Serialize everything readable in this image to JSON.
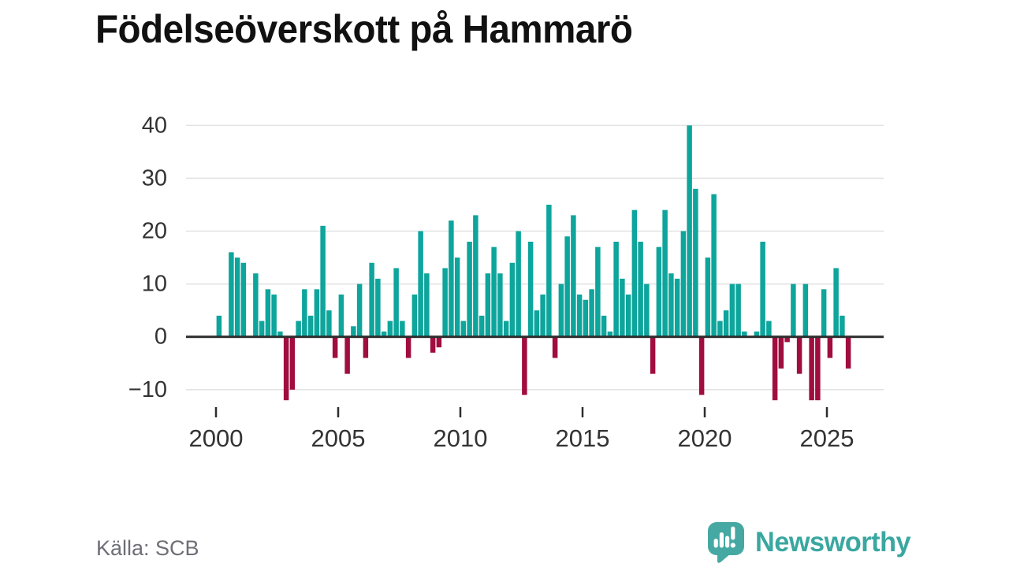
{
  "page": {
    "title": "Födelseöverskott på Hammarö",
    "source": "Källa: SCB",
    "brand": {
      "name": "Newsworthy",
      "text_color": "#3aa7a0",
      "icon_color": "#45a8a2"
    }
  },
  "chart_data": {
    "type": "bar",
    "title": "Födelseöverskott på Hammarö",
    "source": "Källa: SCB",
    "frequency": "quarterly",
    "start": "2000-Q1",
    "end": "2025-Q4",
    "grid": true,
    "legend": "none",
    "ylim": [
      -13.5,
      42
    ],
    "positive_color": "#0da59c",
    "negative_color": "#a00d3f",
    "y_axis": {
      "tick_values": [
        40,
        30,
        20,
        10,
        0,
        -10
      ],
      "tick_labels": [
        "40",
        "30",
        "20",
        "10",
        "0",
        "−10"
      ]
    },
    "x_axis": {
      "tick_years": [
        2000,
        2005,
        2010,
        2015,
        2020,
        2025
      ],
      "tick_labels": [
        "2000",
        "2005",
        "2010",
        "2015",
        "2020",
        "2025"
      ]
    },
    "series": [
      {
        "name": "Födelseöverskott",
        "quarter_order": [
          "Q1",
          "Q2",
          "Q3",
          "Q4"
        ],
        "values_by_year": {
          "2000": [
            4,
            0,
            16,
            15
          ],
          "2001": [
            14,
            0,
            12,
            3
          ],
          "2002": [
            9,
            8,
            1,
            -12
          ],
          "2003": [
            -10,
            3,
            9,
            4
          ],
          "2004": [
            9,
            21,
            5,
            -4
          ],
          "2005": [
            8,
            -7,
            2,
            10
          ],
          "2006": [
            -4,
            14,
            11,
            1
          ],
          "2007": [
            3,
            13,
            3,
            -4
          ],
          "2008": [
            8,
            20,
            12,
            -3
          ],
          "2009": [
            -2,
            13,
            22,
            15
          ],
          "2010": [
            3,
            18,
            23,
            4
          ],
          "2011": [
            12,
            17,
            12,
            3
          ],
          "2012": [
            14,
            20,
            -11,
            18
          ],
          "2013": [
            5,
            8,
            25,
            -4
          ],
          "2014": [
            10,
            19,
            23,
            8
          ],
          "2015": [
            7,
            9,
            17,
            4
          ],
          "2016": [
            1,
            18,
            11,
            8
          ],
          "2017": [
            24,
            18,
            10,
            -7
          ],
          "2018": [
            17,
            24,
            12,
            11
          ],
          "2019": [
            20,
            40,
            28,
            -11
          ],
          "2020": [
            15,
            27,
            3,
            5
          ],
          "2021": [
            10,
            10,
            1,
            0
          ],
          "2022": [
            1,
            18,
            3,
            -12
          ],
          "2023": [
            -6,
            -1,
            10,
            -7
          ],
          "2024": [
            10,
            -12,
            -12,
            9
          ],
          "2025": [
            -4,
            13,
            4,
            -6
          ]
        }
      }
    ]
  }
}
